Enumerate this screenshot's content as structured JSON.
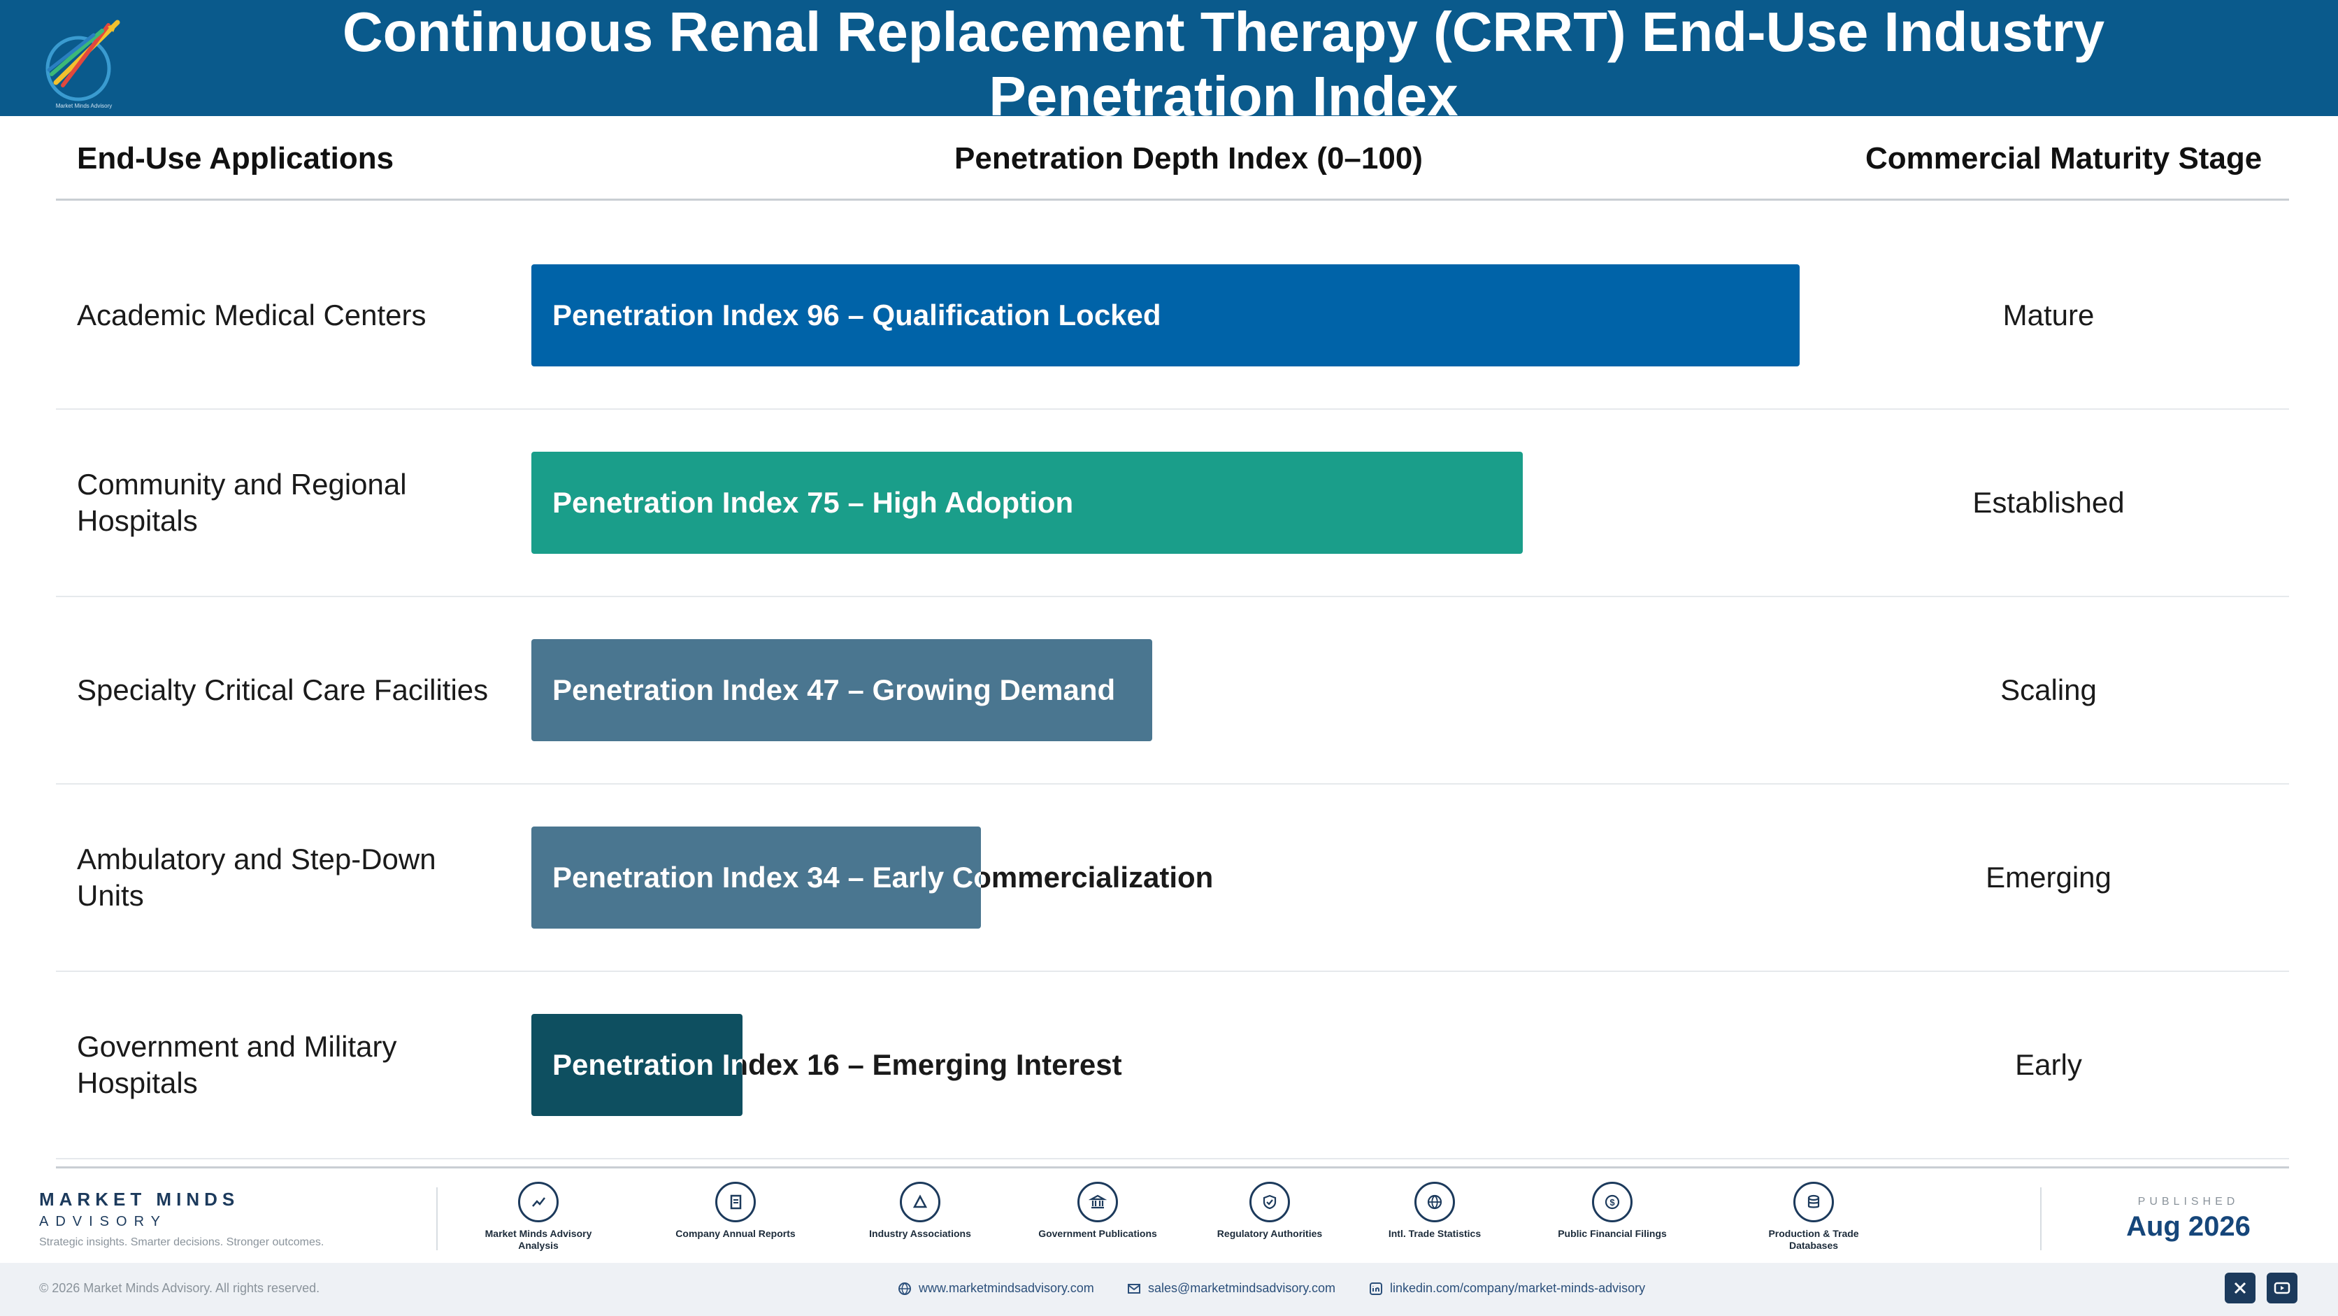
{
  "header": {
    "title": "Continuous Renal Replacement Therapy (CRRT) End-Use Industry Penetration Index",
    "logo_caption": "Market Minds Advisory"
  },
  "columns": {
    "applications": "End-Use Applications",
    "penetration": "Penetration Depth Index (0–100)",
    "maturity": "Commercial Maturity Stage"
  },
  "chart_data": {
    "type": "bar",
    "orientation": "horizontal",
    "xlim": [
      0,
      100
    ],
    "categories": [
      "Academic Medical Centers",
      "Community and Regional Hospitals",
      "Specialty Critical Care Facilities",
      "Ambulatory and Step-Down Units",
      "Government and Military Hospitals"
    ],
    "values": [
      96,
      75,
      47,
      34,
      16
    ],
    "bar_labels": [
      "Penetration Index 96 – Qualification Locked",
      "Penetration Index 75 – High Adoption",
      "Penetration Index 47 – Growing Demand",
      "Penetration Index 34 – Early Commercialization",
      "Penetration Index 16 – Emerging Interest"
    ],
    "stages": [
      "Mature",
      "Established",
      "Scaling",
      "Emerging",
      "Early"
    ],
    "colors": [
      "#0063a8",
      "#1a9e8a",
      "#4a7690",
      "#4a7690",
      "#0e4f60"
    ]
  },
  "footer": {
    "brand_line1": "MARKET MINDS",
    "brand_line2": "ADVISORY",
    "tagline": "Strategic insights. Smarter decisions. Stronger outcomes.",
    "sources": [
      {
        "label": "Market Minds Advisory Analysis",
        "icon": "trend-line-icon"
      },
      {
        "label": "Company Annual Reports",
        "icon": "document-icon"
      },
      {
        "label": "Industry Associations",
        "icon": "network-icon"
      },
      {
        "label": "Government Publications",
        "icon": "government-building-icon"
      },
      {
        "label": "Regulatory Authorities",
        "icon": "shield-check-icon"
      },
      {
        "label": "Intl. Trade Statistics",
        "icon": "globe-icon"
      },
      {
        "label": "Public Financial Filings",
        "icon": "dollar-coin-icon"
      },
      {
        "label": "Production & Trade Databases",
        "icon": "database-icon"
      }
    ],
    "published_caption": "PUBLISHED",
    "published_date": "Aug 2026",
    "copyright": "© 2026 Market Minds Advisory. All rights reserved.",
    "website": "www.marketmindsadvisory.com",
    "email": "sales@marketmindsadvisory.com",
    "linkedin": "linkedin.com/company/market-minds-advisory"
  }
}
